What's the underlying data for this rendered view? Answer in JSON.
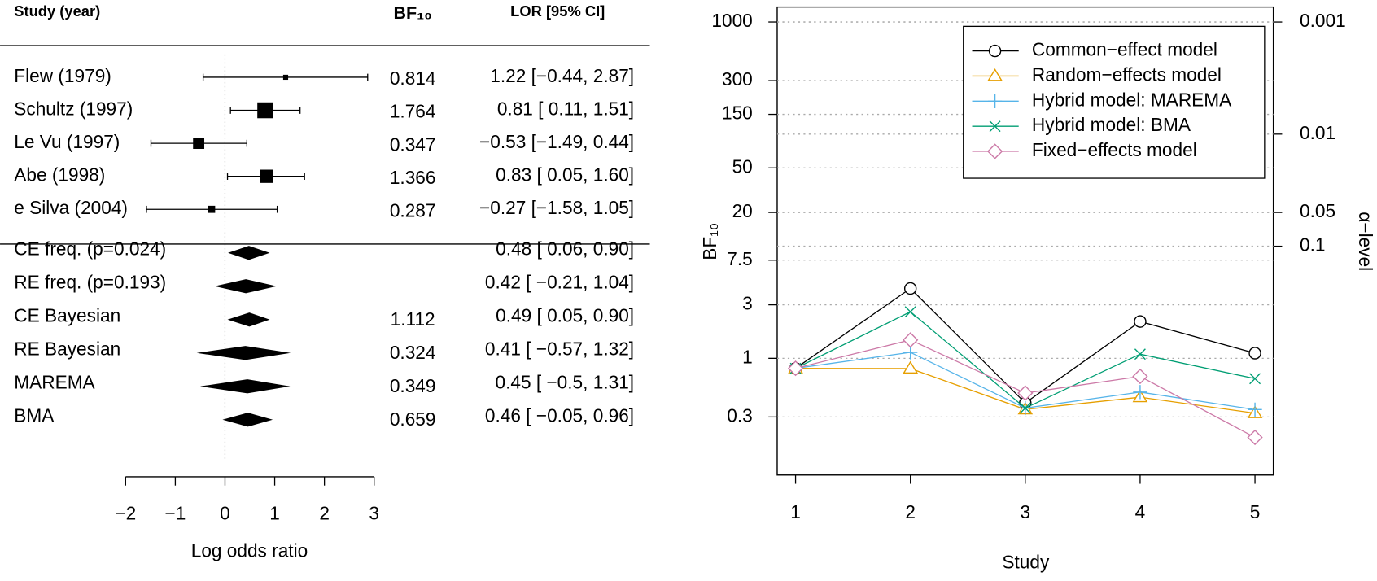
{
  "chart_data": [
    {
      "type": "forest",
      "headers": {
        "study": "Study (year)",
        "bf": "BF₁₀",
        "ci": "LOR [95% CI]"
      },
      "studies": [
        {
          "name": "Flew (1979)",
          "estimate": 1.22,
          "lower": -0.44,
          "upper": 2.87,
          "weight": 3,
          "bf": 0.814,
          "ci_label": "1.22 [−0.44, 2.87]"
        },
        {
          "name": "Schultz (1997)",
          "estimate": 0.81,
          "lower": 0.11,
          "upper": 1.51,
          "weight": 30,
          "bf": 1.764,
          "ci_label": "0.81 [ 0.11, 1.51]"
        },
        {
          "name": "Le Vu (1997)",
          "estimate": -0.53,
          "lower": -1.49,
          "upper": 0.44,
          "weight": 15,
          "bf": 0.347,
          "ci_label": "−0.53 [−1.49, 0.44]"
        },
        {
          "name": "Abe (1998)",
          "estimate": 0.83,
          "lower": 0.05,
          "upper": 1.6,
          "weight": 21,
          "bf": 1.366,
          "ci_label": "0.83 [ 0.05, 1.60]"
        },
        {
          "name": "e Silva (2004)",
          "estimate": -0.27,
          "lower": -1.58,
          "upper": 1.05,
          "weight": 6,
          "bf": 0.287,
          "ci_label": "−0.27 [−1.58, 1.05]"
        }
      ],
      "pooled": [
        {
          "name": "CE freq. (p=0.024)",
          "estimate": 0.48,
          "lower": 0.06,
          "upper": 0.9,
          "bf": null,
          "ci_label": "0.48 [ 0.06, 0.90]"
        },
        {
          "name": "RE freq. (p=0.193)",
          "estimate": 0.42,
          "lower": -0.21,
          "upper": 1.04,
          "bf": null,
          "ci_label": "0.42 [ −0.21, 1.04]"
        },
        {
          "name": "CE Bayesian",
          "estimate": 0.49,
          "lower": 0.05,
          "upper": 0.9,
          "bf": 1.112,
          "ci_label": "0.49 [ 0.05, 0.90]"
        },
        {
          "name": "RE Bayesian",
          "estimate": 0.41,
          "lower": -0.57,
          "upper": 1.32,
          "bf": 0.324,
          "ci_label": "0.41 [ −0.57, 1.32]"
        },
        {
          "name": "MAREMA",
          "estimate": 0.45,
          "lower": -0.5,
          "upper": 1.31,
          "bf": 0.349,
          "ci_label": "0.45 [ −0.5, 1.31]"
        },
        {
          "name": "BMA",
          "estimate": 0.46,
          "lower": -0.05,
          "upper": 0.96,
          "bf": 0.659,
          "ci_label": "0.46 [ −0.05, 0.96]"
        }
      ],
      "xlim": [
        -2,
        3
      ],
      "xticks": [
        {
          "value": -2,
          "label": "−2"
        },
        {
          "value": -1,
          "label": "−1"
        },
        0,
        1,
        2,
        3
      ],
      "xlabel": "Log odds ratio",
      "reference_line": 0
    },
    {
      "type": "line",
      "x": [
        1,
        2,
        3,
        4,
        5
      ],
      "xlim": [
        0.84,
        5.16
      ],
      "xticks": [
        1,
        2,
        3,
        4,
        5
      ],
      "xlabel": "Study",
      "ylabel": "BF₁₀",
      "y2label": "α−level",
      "log_scale": true,
      "ylim": [
        0.091,
        1360
      ],
      "yticks": [
        0.3,
        1,
        3,
        7.5,
        20,
        50,
        150,
        300,
        1000
      ],
      "y2lim": [
        10.99,
        0.000735
      ],
      "y2ticks": [
        0.001,
        0.01,
        0.05,
        0.1
      ],
      "grid": true,
      "legend": "top-right",
      "series": [
        {
          "name": "Common−effect model",
          "color": "#000000",
          "marker": "circle",
          "values": [
            0.814,
            4.2,
            0.4,
            2.13,
            1.112
          ]
        },
        {
          "name": "Random−effects model",
          "color": "#E69F00",
          "marker": "triangle",
          "values": [
            0.814,
            0.81,
            0.35,
            0.45,
            0.324
          ]
        },
        {
          "name": "Hybrid model: MAREMA",
          "color": "#56B4E9",
          "marker": "plus",
          "values": [
            0.814,
            1.13,
            0.36,
            0.5,
            0.349
          ]
        },
        {
          "name": "Hybrid model: BMA",
          "color": "#009E73",
          "marker": "cross",
          "values": [
            0.814,
            2.6,
            0.36,
            1.09,
            0.659
          ]
        },
        {
          "name": "Fixed−effects model",
          "color": "#CC79A7",
          "marker": "diamond",
          "values": [
            0.814,
            1.46,
            0.49,
            0.69,
            0.197
          ]
        }
      ]
    }
  ]
}
